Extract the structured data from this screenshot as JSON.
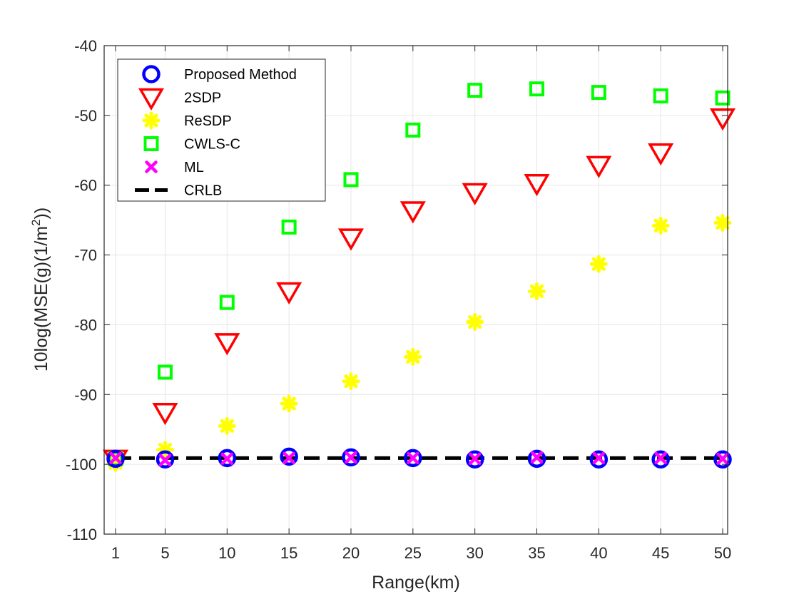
{
  "chart_data": {
    "type": "scatter",
    "title": "",
    "xlabel": "Range(km)",
    "ylabel_main": "10log(MSE(g)(1/m",
    "ylabel_sup": "2",
    "ylabel_end": "))",
    "xlim": [
      0,
      50
    ],
    "ylim": [
      -110,
      -40
    ],
    "x_ticks": [
      1,
      5,
      10,
      15,
      20,
      25,
      30,
      35,
      40,
      45,
      50
    ],
    "y_ticks": [
      -110,
      -100,
      -90,
      -80,
      -70,
      -60,
      -50,
      -40
    ],
    "grid": true,
    "legend_position": "top-left",
    "x": [
      1,
      5,
      10,
      15,
      20,
      25,
      30,
      35,
      40,
      45,
      50
    ],
    "series": [
      {
        "name": "Proposed Method",
        "marker": "circle",
        "color": "#0000ff",
        "values": [
          -99.2,
          -99.3,
          -99.1,
          -98.9,
          -99.0,
          -99.1,
          -99.3,
          -99.2,
          -99.3,
          -99.3,
          -99.3
        ]
      },
      {
        "name": "2SDP",
        "marker": "triangle-down",
        "color": "#ff0000",
        "values": [
          -99.2,
          -92.5,
          -82.5,
          -75.2,
          -67.5,
          -63.6,
          -61.0,
          -59.7,
          -57.1,
          -55.3,
          -50.3
        ]
      },
      {
        "name": "ReSDP",
        "marker": "asterisk",
        "color": "#ffff00",
        "values": [
          -99.8,
          -97.9,
          -94.5,
          -91.3,
          -88.1,
          -84.6,
          -79.6,
          -75.2,
          -71.3,
          -65.8,
          -65.4
        ]
      },
      {
        "name": "CWLS-C",
        "marker": "square",
        "color": "#00ff00",
        "values": [
          -99.2,
          -86.8,
          -76.8,
          -66.0,
          -59.2,
          -52.1,
          -46.4,
          -46.2,
          -46.7,
          -47.2,
          -47.5
        ]
      },
      {
        "name": "ML",
        "marker": "x",
        "color": "#ff00ff",
        "values": [
          -99.1,
          -99.4,
          -99.2,
          -99.1,
          -99.0,
          -99.1,
          -99.2,
          -99.0,
          -99.1,
          -99.1,
          -99.2
        ]
      },
      {
        "name": "CRLB",
        "marker": "dashed-line",
        "color": "#000000",
        "values": [
          -99.1,
          -99.1,
          -99.1,
          -99.1,
          -99.1,
          -99.1,
          -99.1,
          -99.1,
          -99.1,
          -99.1,
          -99.1
        ]
      }
    ]
  }
}
